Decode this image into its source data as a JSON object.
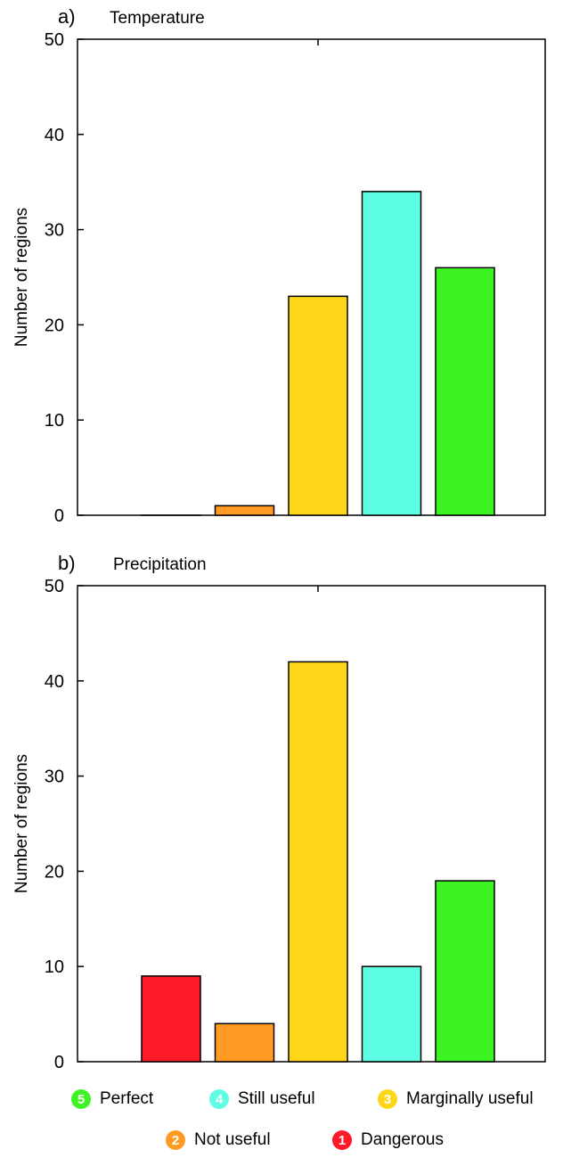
{
  "chart_data": [
    {
      "type": "bar",
      "panel_label": "a)",
      "title": "Temperature",
      "ylabel": "Number of regions",
      "xlabel": "",
      "ylim": [
        0,
        50
      ],
      "yticks": [
        0,
        10,
        20,
        30,
        40,
        50
      ],
      "categories": [
        "1",
        "2",
        "3",
        "4",
        "5"
      ],
      "values": [
        0,
        1,
        23,
        34,
        26
      ],
      "colors": [
        "#ff1a2a",
        "#ff9a22",
        "#ffd617",
        "#5efee4",
        "#3cf423"
      ]
    },
    {
      "type": "bar",
      "panel_label": "b)",
      "title": "Precipitation",
      "ylabel": "Number of regions",
      "xlabel": "",
      "ylim": [
        0,
        50
      ],
      "yticks": [
        0,
        10,
        20,
        30,
        40,
        50
      ],
      "categories": [
        "1",
        "2",
        "3",
        "4",
        "5"
      ],
      "values": [
        9,
        4,
        42,
        10,
        19
      ],
      "colors": [
        "#ff1a2a",
        "#ff9a22",
        "#ffd617",
        "#5efee4",
        "#3cf423"
      ]
    }
  ],
  "legend": {
    "row1": [
      {
        "num": "5",
        "label": "Perfect",
        "color": "#3cf423"
      },
      {
        "num": "4",
        "label": "Still useful",
        "color": "#5efee4"
      },
      {
        "num": "3",
        "label": "Marginally useful",
        "color": "#ffd617"
      }
    ],
    "row2": [
      {
        "num": "2",
        "label": "Not useful",
        "color": "#ff9a22"
      },
      {
        "num": "1",
        "label": "Dangerous",
        "color": "#ff1a2a"
      }
    ]
  }
}
